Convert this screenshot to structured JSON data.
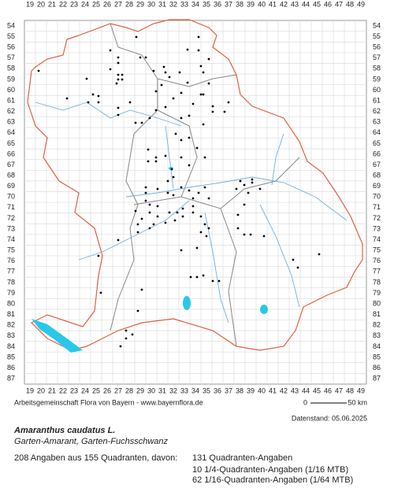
{
  "map": {
    "x_labels": [
      19,
      20,
      21,
      22,
      23,
      24,
      25,
      26,
      27,
      28,
      29,
      30,
      31,
      32,
      33,
      34,
      35,
      36,
      37,
      38,
      39,
      40,
      41,
      42,
      43,
      44,
      45,
      46,
      47,
      48,
      49
    ],
    "y_labels": [
      54,
      55,
      56,
      57,
      58,
      59,
      60,
      61,
      62,
      63,
      64,
      65,
      66,
      67,
      68,
      69,
      70,
      71,
      72,
      73,
      74,
      75,
      76,
      77,
      78,
      79,
      80,
      81,
      82,
      83,
      84,
      85,
      86,
      87
    ],
    "credit": "Arbeitsgemeinschaft Flora von Bayern - www.bayernflora.de",
    "date": "Datenstand: 05.06.2025",
    "scale_start": "0",
    "scale_end": "50 km",
    "title": "Amaranthus caudatus L.",
    "subtitle": "Garten-Amarant, Garten-Fuchsschwanz",
    "summary": "208 Angaben aus 155 Quadranten, davon:",
    "counts": [
      "131 Quadranten-Angaben",
      "10 1/4-Quadranten-Angaben (1/16 MTB)",
      "62 1/16-Quadranten-Angaben (1/64 MTB)"
    ]
  }
}
